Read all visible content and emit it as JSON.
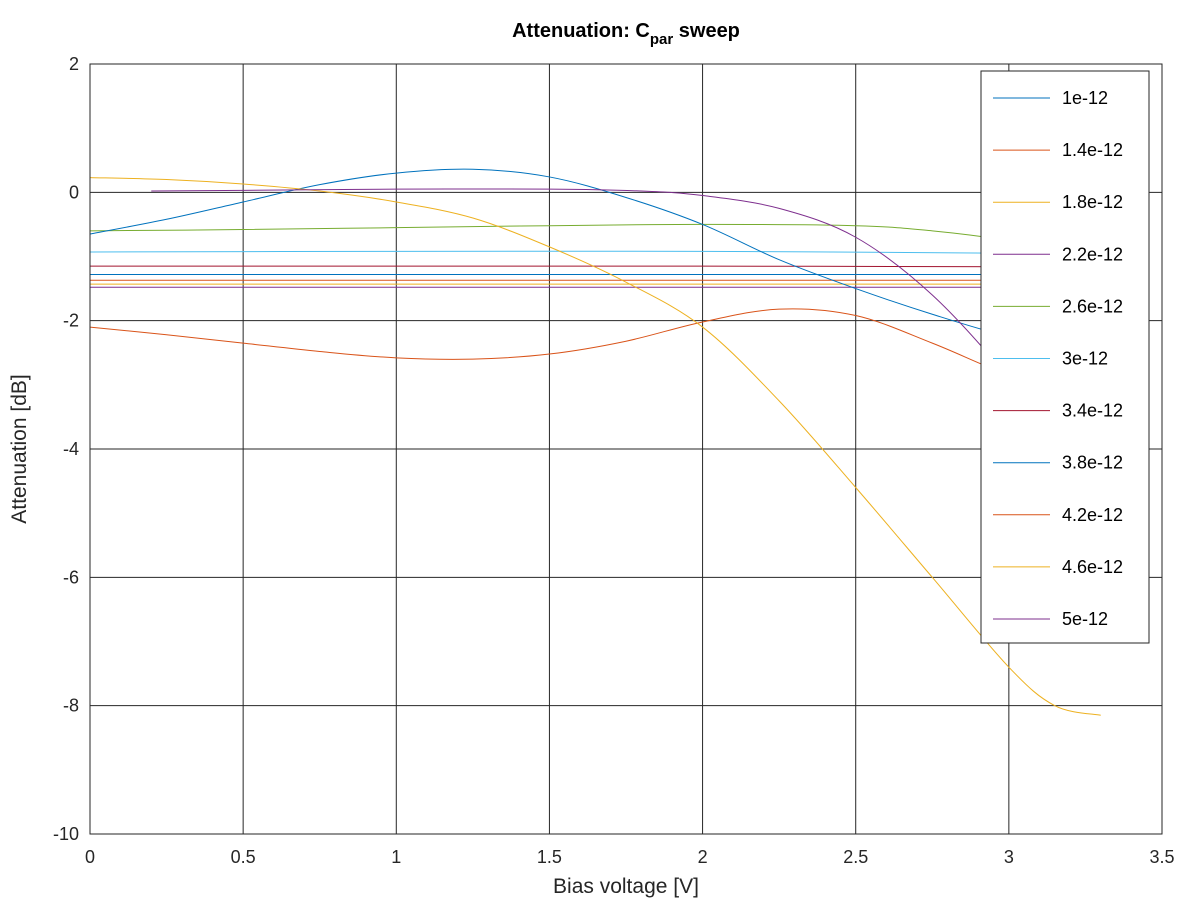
{
  "chart_data": {
    "type": "line",
    "title": {
      "main": "Attenuation: C",
      "sub": "par",
      "tail": " sweep"
    },
    "xlabel": "Bias voltage [V]",
    "ylabel": "Attenuation [dB]",
    "xlim": [
      0,
      3.5
    ],
    "ylim": [
      -10,
      2
    ],
    "x_ticks": [
      "0",
      "0.5",
      "1",
      "1.5",
      "2",
      "2.5",
      "3",
      "3.5"
    ],
    "y_ticks": [
      "2",
      "0",
      "-2",
      "-4",
      "-6",
      "-8",
      "-10"
    ],
    "grid": true,
    "legend_position": "top-right",
    "colors": [
      "#0072bd",
      "#d95319",
      "#edb120",
      "#7e2f8e",
      "#77ac30",
      "#4dbeee",
      "#a2142f"
    ],
    "series": [
      {
        "name": "1e-12",
        "x": [
          0,
          0.25,
          0.5,
          0.75,
          1.0,
          1.25,
          1.5,
          1.75,
          2.0,
          2.25,
          2.5,
          2.75,
          3.0,
          3.3
        ],
        "y": [
          -0.65,
          -0.42,
          -0.15,
          0.12,
          0.3,
          0.36,
          0.24,
          -0.08,
          -0.5,
          -1.05,
          -1.5,
          -1.9,
          -2.25,
          -2.55
        ]
      },
      {
        "name": "1.4e-12",
        "x": [
          0,
          0.25,
          0.5,
          0.75,
          1.0,
          1.25,
          1.5,
          1.75,
          2.0,
          2.25,
          2.5,
          2.75,
          3.0,
          3.3
        ],
        "y": [
          -2.1,
          -2.22,
          -2.35,
          -2.48,
          -2.58,
          -2.6,
          -2.52,
          -2.32,
          -2.02,
          -1.82,
          -1.92,
          -2.35,
          -2.85,
          -3.33
        ]
      },
      {
        "name": "1.8e-12",
        "x": [
          0,
          0.25,
          0.5,
          0.75,
          1.0,
          1.25,
          1.5,
          1.75,
          2.0,
          2.25,
          2.5,
          2.75,
          3.0,
          3.15,
          3.3
        ],
        "y": [
          0.23,
          0.2,
          0.13,
          0.02,
          -0.15,
          -0.4,
          -0.85,
          -1.4,
          -2.1,
          -3.25,
          -4.6,
          -6.0,
          -7.4,
          -8.0,
          -8.15
        ]
      },
      {
        "name": "2.2e-12",
        "x": [
          0.2,
          0.5,
          1.0,
          1.5,
          1.8,
          2.0,
          2.25,
          2.5,
          2.75,
          3.0,
          3.15,
          3.3
        ],
        "y": [
          0.02,
          0.03,
          0.05,
          0.05,
          0.02,
          -0.05,
          -0.25,
          -0.7,
          -1.6,
          -2.9,
          -3.9,
          -5.3
        ]
      },
      {
        "name": "2.6e-12",
        "x": [
          0,
          0.5,
          1.0,
          1.5,
          2.0,
          2.5,
          2.75,
          3.0,
          3.15,
          3.3
        ],
        "y": [
          -0.6,
          -0.58,
          -0.55,
          -0.52,
          -0.5,
          -0.52,
          -0.6,
          -0.75,
          -0.9,
          -1.05
        ]
      },
      {
        "name": "3e-12",
        "x": [
          0,
          1.0,
          2.0,
          3.0,
          3.3
        ],
        "y": [
          -0.93,
          -0.92,
          -0.92,
          -0.95,
          -1.0
        ]
      },
      {
        "name": "3.4e-12",
        "x": [
          0,
          1.0,
          2.0,
          3.0,
          3.3
        ],
        "y": [
          -1.15,
          -1.15,
          -1.15,
          -1.16,
          -1.17
        ]
      },
      {
        "name": "3.8e-12",
        "x": [
          0,
          1.0,
          2.0,
          3.0,
          3.3
        ],
        "y": [
          -1.28,
          -1.28,
          -1.28,
          -1.28,
          -1.28
        ]
      },
      {
        "name": "4.2e-12",
        "x": [
          0,
          1.0,
          2.0,
          3.0,
          3.3
        ],
        "y": [
          -1.37,
          -1.37,
          -1.37,
          -1.37,
          -1.37
        ]
      },
      {
        "name": "4.6e-12",
        "x": [
          0,
          1.0,
          2.0,
          3.0,
          3.3
        ],
        "y": [
          -1.43,
          -1.43,
          -1.43,
          -1.43,
          -1.43
        ]
      },
      {
        "name": "5e-12",
        "x": [
          0,
          1.0,
          2.0,
          3.0,
          3.3
        ],
        "y": [
          -1.48,
          -1.48,
          -1.48,
          -1.48,
          -1.48
        ]
      }
    ],
    "series_colors": [
      "#0072bd",
      "#d95319",
      "#edb120",
      "#7e2f8e",
      "#77ac30",
      "#4dbeee",
      "#a2142f",
      "#0072bd",
      "#d95319",
      "#edb120",
      "#7e2f8e"
    ]
  }
}
